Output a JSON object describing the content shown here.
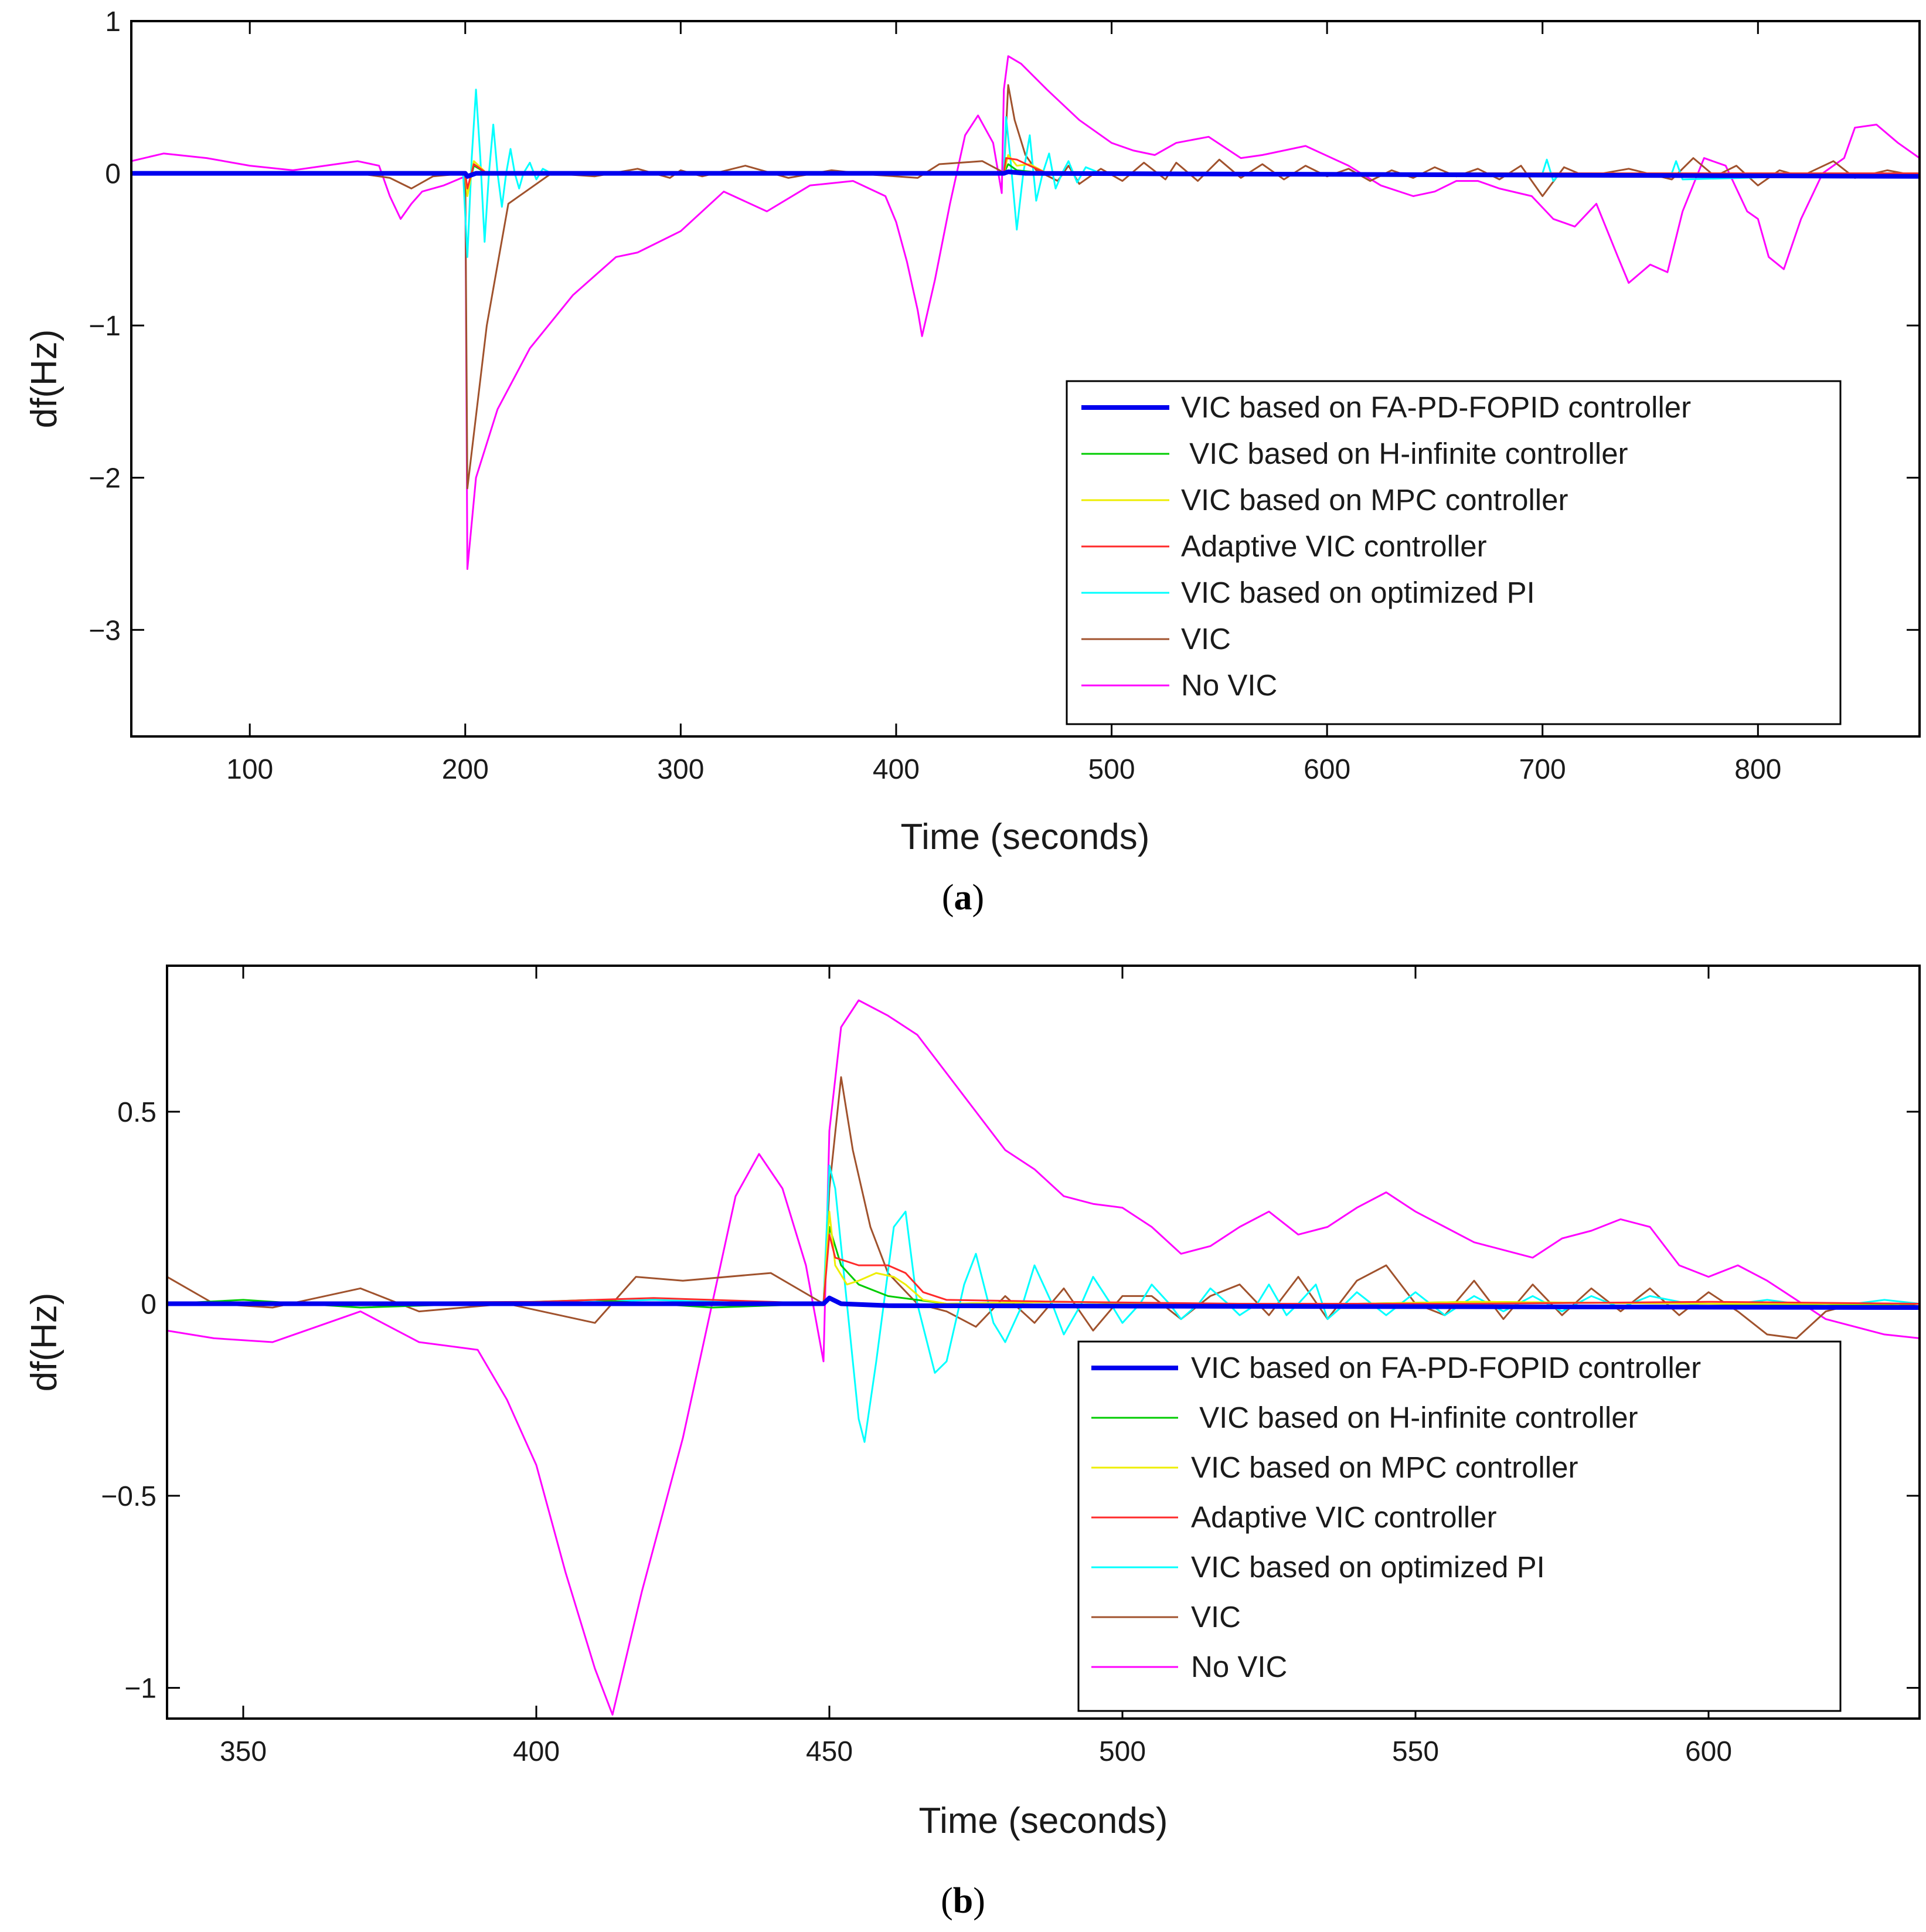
{
  "figure": {
    "panels": [
      "a",
      "b"
    ]
  },
  "chart_data": [
    {
      "id": "a",
      "type": "line",
      "caption_letter": "a",
      "xlabel": "Time  (seconds)",
      "ylabel": "df(Hz)",
      "xlim": [
        45,
        875
      ],
      "ylim": [
        -3.7,
        1.0
      ],
      "xticks": [
        100,
        200,
        300,
        400,
        500,
        600,
        700,
        800
      ],
      "yticks": [
        1,
        0,
        -1,
        -2,
        -3
      ],
      "ytick_labels": [
        "1",
        "0",
        "−1",
        "−2",
        "−3"
      ],
      "legend_location": "lower-right",
      "series": [
        {
          "name": "VIC based on FA-PD-FOPID controller",
          "color": "#0000ee",
          "width": 8,
          "x": [
            45,
            200,
            201,
            205,
            450,
            452,
            460,
            875
          ],
          "y": [
            0.0,
            0.0,
            -0.02,
            0.0,
            0.0,
            0.01,
            0.0,
            -0.02
          ]
        },
        {
          "name": " VIC based on H-infinite controller",
          "color": "#00cc00",
          "width": 3,
          "x": [
            45,
            200,
            201,
            204,
            210,
            450,
            452,
            456,
            470,
            875
          ],
          "y": [
            0.0,
            0.0,
            -0.12,
            0.05,
            0.0,
            0.0,
            0.06,
            0.02,
            0.0,
            0.0
          ]
        },
        {
          "name": "VIC based on MPC controller",
          "color": "#eeee00",
          "width": 3,
          "x": [
            45,
            200,
            201,
            204,
            210,
            450,
            452,
            456,
            462,
            470,
            875
          ],
          "y": [
            0.0,
            0.0,
            -0.15,
            0.08,
            0.0,
            0.0,
            0.12,
            0.05,
            0.06,
            0.0,
            0.0
          ]
        },
        {
          "name": "Adaptive VIC controller",
          "color": "#ff2a2a",
          "width": 3,
          "x": [
            45,
            200,
            201,
            204,
            210,
            450,
            451,
            456,
            462,
            470,
            875
          ],
          "y": [
            0.0,
            0.0,
            -0.1,
            0.06,
            0.0,
            0.0,
            0.1,
            0.09,
            0.05,
            0.0,
            0.0
          ]
        },
        {
          "name": "VIC based on optimized PI",
          "color": "#00ffff",
          "width": 3,
          "x": [
            45,
            199,
            201,
            203,
            205,
            207,
            209,
            211,
            213,
            215,
            217,
            219,
            221,
            223,
            225,
            227,
            230,
            233,
            236,
            240,
            450,
            451,
            453,
            456,
            459,
            462,
            465,
            468,
            471,
            474,
            477,
            480,
            484,
            488,
            495,
            700,
            702,
            705,
            708,
            760,
            762,
            765,
            875
          ],
          "y": [
            0.0,
            0.0,
            -0.55,
            0.1,
            0.55,
            0.1,
            -0.45,
            0.0,
            0.32,
            0.0,
            -0.22,
            0.0,
            0.16,
            0.0,
            -0.1,
            0.0,
            0.07,
            -0.04,
            0.03,
            0.0,
            0.0,
            0.37,
            0.1,
            -0.37,
            0.0,
            0.25,
            -0.18,
            0.0,
            0.13,
            -0.1,
            0.0,
            0.08,
            -0.06,
            0.04,
            0.0,
            0.0,
            0.09,
            -0.05,
            0.0,
            0.0,
            0.08,
            -0.04,
            0.0
          ]
        },
        {
          "name": "VIC",
          "color": "#a0522d",
          "width": 3,
          "x": [
            45,
            150,
            165,
            175,
            185,
            200,
            201,
            210,
            220,
            240,
            260,
            280,
            295,
            300,
            310,
            330,
            350,
            370,
            390,
            410,
            420,
            440,
            448,
            450,
            452,
            455,
            460,
            465,
            475,
            480,
            485,
            495,
            505,
            515,
            525,
            530,
            540,
            550,
            560,
            570,
            580,
            590,
            600,
            610,
            620,
            630,
            640,
            650,
            660,
            670,
            680,
            690,
            700,
            710,
            720,
            740,
            760,
            770,
            780,
            790,
            800,
            810,
            820,
            835,
            845,
            860,
            875
          ],
          "y": [
            0.0,
            0.0,
            -0.03,
            -0.1,
            -0.02,
            0.0,
            -2.07,
            -1.0,
            -0.2,
            0.0,
            -0.02,
            0.03,
            -0.03,
            0.02,
            -0.02,
            0.05,
            -0.03,
            0.02,
            -0.01,
            -0.03,
            0.06,
            0.08,
            0.02,
            0.0,
            0.58,
            0.35,
            0.12,
            0.02,
            -0.05,
            0.05,
            -0.07,
            0.03,
            -0.05,
            0.07,
            -0.04,
            0.07,
            -0.05,
            0.09,
            -0.03,
            0.06,
            -0.04,
            0.05,
            -0.02,
            0.03,
            -0.05,
            0.02,
            -0.03,
            0.04,
            -0.02,
            0.03,
            -0.04,
            0.05,
            -0.15,
            0.04,
            -0.02,
            0.03,
            -0.04,
            0.1,
            -0.02,
            0.05,
            -0.08,
            0.02,
            -0.02,
            0.08,
            -0.03,
            0.02,
            -0.02
          ]
        },
        {
          "name": "No VIC",
          "color": "#ff00ff",
          "width": 3,
          "x": [
            45,
            60,
            80,
            100,
            120,
            140,
            150,
            160,
            165,
            170,
            175,
            180,
            190,
            200,
            201,
            205,
            215,
            230,
            250,
            270,
            280,
            300,
            320,
            340,
            360,
            380,
            395,
            400,
            405,
            410,
            412,
            418,
            425,
            432,
            438,
            445,
            449,
            450,
            452,
            458,
            470,
            485,
            500,
            510,
            520,
            530,
            545,
            560,
            570,
            590,
            610,
            625,
            640,
            650,
            660,
            670,
            680,
            695,
            705,
            715,
            725,
            735,
            740,
            750,
            758,
            765,
            775,
            785,
            795,
            800,
            805,
            812,
            820,
            830,
            840,
            845,
            855,
            865,
            875
          ],
          "y": [
            0.08,
            0.13,
            0.1,
            0.05,
            0.02,
            0.06,
            0.08,
            0.05,
            -0.15,
            -0.3,
            -0.2,
            -0.12,
            -0.08,
            -0.02,
            -2.6,
            -2.0,
            -1.55,
            -1.15,
            -0.8,
            -0.55,
            -0.52,
            -0.38,
            -0.12,
            -0.25,
            -0.08,
            -0.05,
            -0.15,
            -0.32,
            -0.58,
            -0.9,
            -1.07,
            -0.7,
            -0.2,
            0.25,
            0.38,
            0.2,
            -0.13,
            0.55,
            0.77,
            0.72,
            0.55,
            0.35,
            0.2,
            0.15,
            0.12,
            0.2,
            0.24,
            0.1,
            0.12,
            0.18,
            0.05,
            -0.08,
            -0.15,
            -0.12,
            -0.05,
            -0.05,
            -0.1,
            -0.15,
            -0.3,
            -0.35,
            -0.2,
            -0.55,
            -0.72,
            -0.6,
            -0.65,
            -0.25,
            0.1,
            0.05,
            -0.25,
            -0.3,
            -0.55,
            -0.63,
            -0.3,
            0.0,
            0.1,
            0.3,
            0.32,
            0.2,
            0.1
          ]
        }
      ]
    },
    {
      "id": "b",
      "type": "line",
      "caption_letter": "b",
      "xlabel": "Time  (seconds)",
      "ylabel": "df(Hz)",
      "xlim": [
        337,
        636
      ],
      "ylim": [
        -1.08,
        0.88
      ],
      "xticks": [
        350,
        400,
        450,
        500,
        550,
        600
      ],
      "yticks": [
        0.5,
        0,
        -0.5,
        -1
      ],
      "ytick_labels": [
        "0.5",
        "0",
        "−0.5",
        "−1"
      ],
      "legend_location": "lower-right",
      "series": [
        {
          "name": "VIC based on FA-PD-FOPID controller",
          "color": "#0000ee",
          "width": 8,
          "x": [
            337,
            449,
            450,
            452,
            460,
            636
          ],
          "y": [
            0.0,
            0.0,
            0.015,
            0.0,
            -0.005,
            -0.01
          ]
        },
        {
          "name": " VIC based on H-infinite controller",
          "color": "#00cc00",
          "width": 3,
          "x": [
            337,
            350,
            370,
            390,
            410,
            430,
            449,
            450,
            452,
            455,
            460,
            470,
            490,
            520,
            560,
            600,
            620,
            636
          ],
          "y": [
            0.0,
            0.01,
            -0.01,
            0.0,
            0.01,
            -0.01,
            0.0,
            0.2,
            0.1,
            0.05,
            0.02,
            0.0,
            0.005,
            -0.005,
            0.005,
            0.0,
            -0.005,
            0.0
          ]
        },
        {
          "name": "VIC based on MPC controller",
          "color": "#eeee00",
          "width": 3,
          "x": [
            337,
            449,
            450,
            451,
            453,
            455,
            458,
            461,
            463,
            466,
            470,
            490,
            520,
            560,
            600,
            636
          ],
          "y": [
            0.0,
            0.0,
            0.24,
            0.1,
            0.05,
            0.06,
            0.08,
            0.07,
            0.05,
            0.01,
            0.0,
            0.005,
            -0.005,
            0.005,
            0.0,
            0.0
          ]
        },
        {
          "name": "Adaptive VIC controller",
          "color": "#ff2a2a",
          "width": 3,
          "x": [
            337,
            400,
            420,
            440,
            449,
            450,
            451,
            455,
            460,
            463,
            466,
            470,
            490,
            520,
            560,
            600,
            636
          ],
          "y": [
            0.0,
            0.005,
            0.015,
            0.005,
            0.0,
            0.18,
            0.12,
            0.1,
            0.1,
            0.08,
            0.03,
            0.01,
            0.005,
            0.0,
            0.0,
            0.005,
            0.0
          ]
        },
        {
          "name": "VIC based on optimized PI",
          "color": "#00ffff",
          "width": 3,
          "x": [
            337,
            400,
            420,
            440,
            449,
            450,
            451,
            453,
            455,
            456,
            458,
            461,
            463,
            465,
            468,
            470,
            473,
            475,
            478,
            480,
            483,
            485,
            488,
            490,
            493,
            495,
            498,
            500,
            503,
            505,
            508,
            510,
            513,
            515,
            518,
            520,
            523,
            525,
            528,
            530,
            533,
            535,
            538,
            540,
            545,
            550,
            555,
            560,
            565,
            570,
            575,
            580,
            585,
            590,
            600,
            610,
            620,
            630,
            636
          ],
          "y": [
            0.0,
            0.0,
            0.01,
            0.0,
            0.0,
            0.36,
            0.3,
            0.0,
            -0.3,
            -0.36,
            -0.15,
            0.2,
            0.24,
            0.0,
            -0.18,
            -0.15,
            0.05,
            0.13,
            -0.05,
            -0.1,
            0.0,
            0.1,
            0.0,
            -0.08,
            0.0,
            0.07,
            0.0,
            -0.05,
            0.0,
            0.05,
            0.0,
            -0.04,
            0.0,
            0.04,
            0.0,
            -0.03,
            0.0,
            0.05,
            -0.03,
            0.0,
            0.05,
            -0.04,
            0.0,
            0.03,
            -0.03,
            0.03,
            -0.03,
            0.02,
            -0.02,
            0.02,
            -0.02,
            0.02,
            -0.01,
            0.02,
            -0.01,
            0.01,
            -0.01,
            0.01,
            0.0
          ]
        },
        {
          "name": "VIC",
          "color": "#a0522d",
          "width": 3,
          "x": [
            337,
            345,
            355,
            370,
            380,
            395,
            410,
            417,
            425,
            440,
            449,
            450,
            452,
            454,
            457,
            460,
            465,
            470,
            475,
            480,
            485,
            490,
            495,
            500,
            505,
            510,
            515,
            520,
            525,
            530,
            535,
            540,
            545,
            550,
            555,
            560,
            565,
            570,
            575,
            580,
            585,
            590,
            595,
            600,
            605,
            610,
            615,
            620,
            625,
            630,
            636
          ],
          "y": [
            0.07,
            0.0,
            -0.01,
            0.04,
            -0.02,
            0.0,
            -0.05,
            0.07,
            0.06,
            0.08,
            0.0,
            0.3,
            0.59,
            0.4,
            0.2,
            0.08,
            0.0,
            -0.02,
            -0.06,
            0.02,
            -0.05,
            0.04,
            -0.07,
            0.02,
            0.02,
            -0.04,
            0.02,
            0.05,
            -0.03,
            0.07,
            -0.04,
            0.06,
            0.1,
            0.0,
            -0.03,
            0.06,
            -0.04,
            0.05,
            -0.03,
            0.04,
            -0.02,
            0.04,
            -0.03,
            0.03,
            -0.02,
            -0.08,
            -0.09,
            -0.02,
            0.0,
            -0.01,
            0.0
          ]
        },
        {
          "name": "No VIC",
          "color": "#ff00ff",
          "width": 3,
          "x": [
            337,
            345,
            355,
            370,
            380,
            390,
            395,
            400,
            405,
            410,
            413,
            418,
            425,
            430,
            434,
            438,
            442,
            446,
            449,
            450,
            452,
            455,
            460,
            465,
            470,
            475,
            480,
            485,
            490,
            495,
            500,
            505,
            510,
            515,
            520,
            525,
            530,
            535,
            540,
            545,
            550,
            555,
            560,
            565,
            570,
            575,
            580,
            585,
            590,
            595,
            600,
            605,
            610,
            620,
            630,
            636
          ],
          "y": [
            -0.07,
            -0.09,
            -0.1,
            -0.02,
            -0.1,
            -0.12,
            -0.25,
            -0.42,
            -0.7,
            -0.95,
            -1.07,
            -0.75,
            -0.35,
            0.0,
            0.28,
            0.39,
            0.3,
            0.1,
            -0.15,
            0.45,
            0.72,
            0.79,
            0.75,
            0.7,
            0.6,
            0.5,
            0.4,
            0.35,
            0.28,
            0.26,
            0.25,
            0.2,
            0.13,
            0.15,
            0.2,
            0.24,
            0.18,
            0.2,
            0.25,
            0.29,
            0.24,
            0.2,
            0.16,
            0.14,
            0.12,
            0.17,
            0.19,
            0.22,
            0.2,
            0.1,
            0.07,
            0.1,
            0.06,
            -0.04,
            -0.08,
            -0.09
          ]
        }
      ]
    }
  ]
}
